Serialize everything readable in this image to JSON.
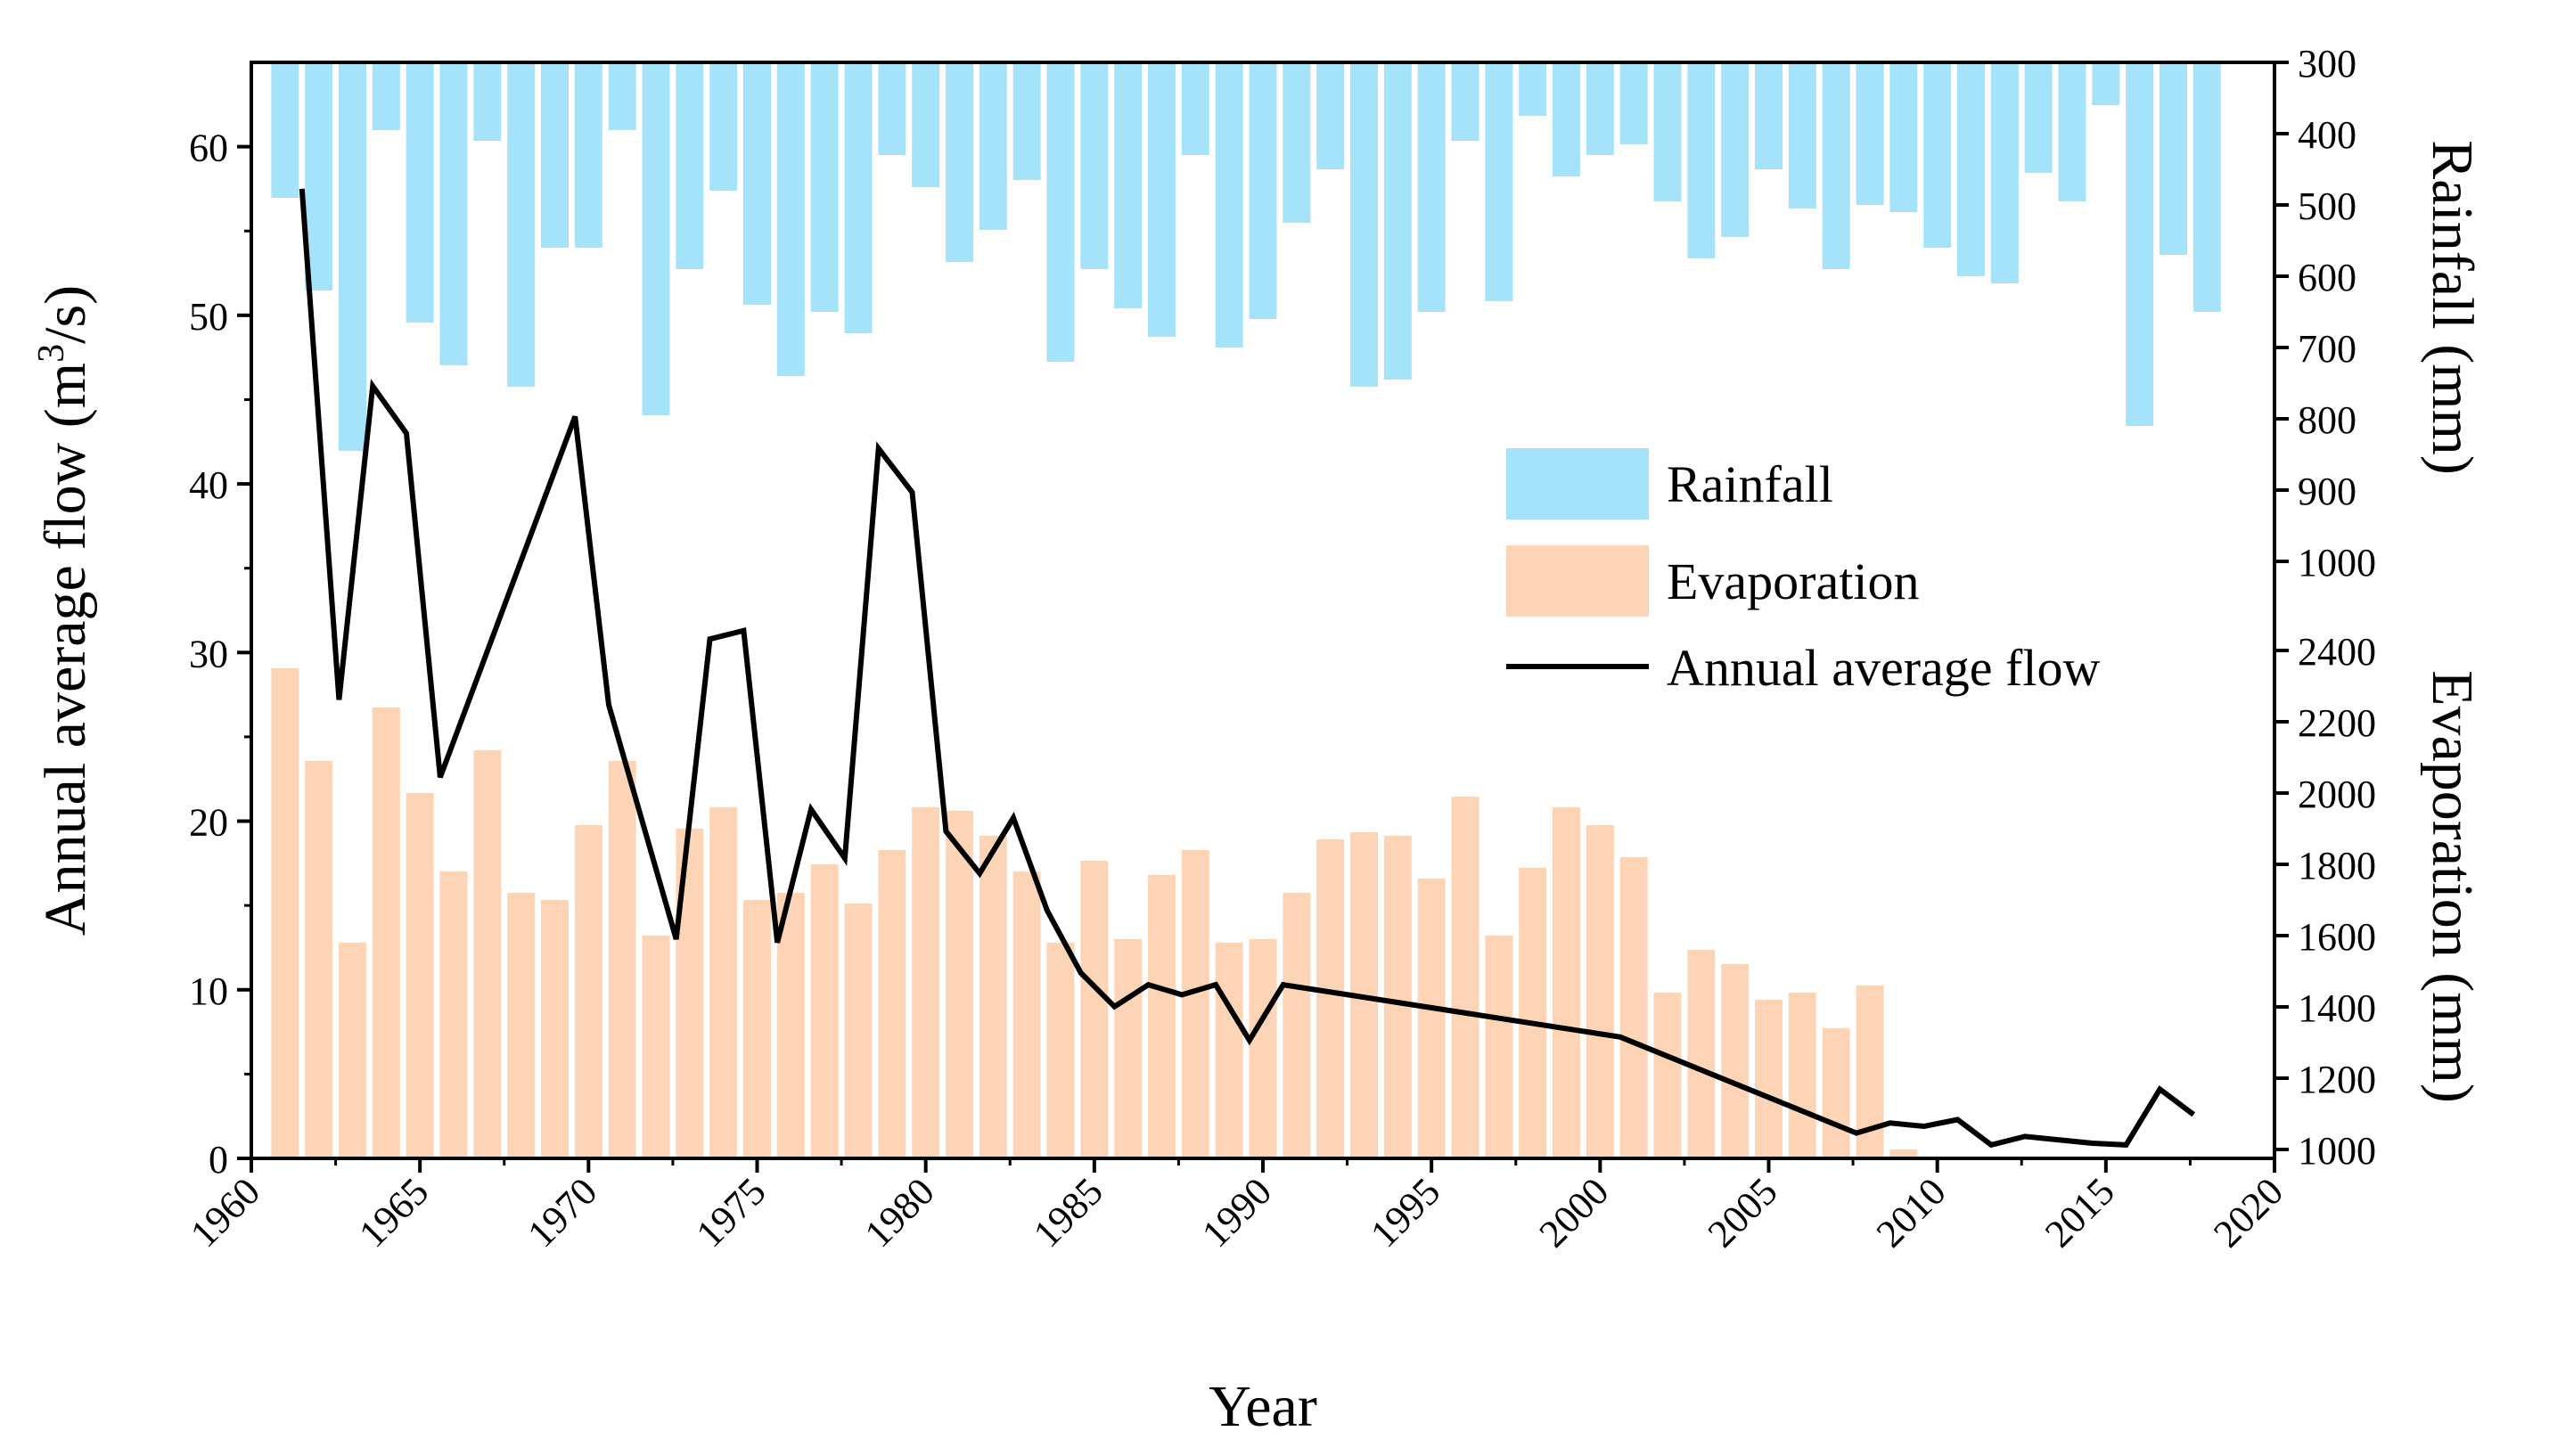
{
  "chart_data": {
    "type": "bar+line",
    "title": "",
    "x": {
      "label": "Year",
      "range": [
        1960,
        2020
      ],
      "ticks": [
        1960,
        1965,
        1970,
        1975,
        1980,
        1985,
        1990,
        1995,
        2000,
        2005,
        2010,
        2015,
        2020
      ]
    },
    "y_left": {
      "label_main": "Annual average flow (m",
      "label_sup": "3",
      "label_tail": "/s)",
      "range": [
        0,
        65
      ],
      "ticks": [
        0,
        10,
        20,
        30,
        40,
        50,
        60
      ]
    },
    "y_right_top": {
      "label": "Rainfall (mm)",
      "inverted": true,
      "range": [
        300,
        1000
      ],
      "ticks": [
        300,
        400,
        500,
        600,
        700,
        800,
        900,
        1000
      ]
    },
    "y_right_bottom": {
      "label": "Evaporation (mm)",
      "range": [
        1000,
        2450
      ],
      "ticks": [
        1000,
        1200,
        1400,
        1600,
        1800,
        2000,
        2200,
        2400
      ]
    },
    "legend": {
      "position": "right",
      "items": [
        {
          "label": "Rainfall",
          "kind": "bar",
          "color": "#a5e3fb"
        },
        {
          "label": "Evaporation",
          "kind": "bar",
          "color": "#fdd5b6"
        },
        {
          "label": "Annual average flow",
          "kind": "line",
          "color": "#000000"
        }
      ]
    },
    "series": [
      {
        "name": "Rainfall",
        "unit": "mm",
        "color": "#a5e3fb",
        "years": [
          1961,
          1962,
          1963,
          1964,
          1965,
          1966,
          1967,
          1968,
          1969,
          1970,
          1971,
          1972,
          1973,
          1974,
          1975,
          1976,
          1977,
          1978,
          1979,
          1980,
          1981,
          1982,
          1983,
          1984,
          1985,
          1986,
          1987,
          1988,
          1989,
          1990,
          1991,
          1992,
          1993,
          1994,
          1995,
          1996,
          1997,
          1998,
          1999,
          2000,
          2001,
          2002,
          2003,
          2004,
          2005,
          2006,
          2007,
          2008,
          2009,
          2010,
          2011,
          2012,
          2013,
          2014,
          2015,
          2016,
          2017,
          2018
        ],
        "values": [
          490,
          620,
          845,
          395,
          665,
          725,
          410,
          755,
          560,
          560,
          395,
          795,
          590,
          480,
          640,
          740,
          650,
          680,
          430,
          475,
          580,
          535,
          465,
          720,
          590,
          645,
          685,
          430,
          700,
          660,
          525,
          450,
          755,
          745,
          650,
          410,
          635,
          375,
          460,
          430,
          415,
          495,
          575,
          545,
          450,
          505,
          590,
          500,
          510,
          560,
          600,
          610,
          455,
          495,
          360,
          810,
          570,
          650
        ]
      },
      {
        "name": "Evaporation",
        "unit": "mm",
        "color": "#fdd5b6",
        "years": [
          1961,
          1962,
          1963,
          1964,
          1965,
          1966,
          1967,
          1968,
          1969,
          1970,
          1971,
          1972,
          1973,
          1974,
          1975,
          1976,
          1977,
          1978,
          1979,
          1980,
          1981,
          1982,
          1983,
          1984,
          1985,
          1986,
          1987,
          1988,
          1989,
          1990,
          1991,
          1992,
          1993,
          1994,
          1995,
          1996,
          1997,
          1998,
          1999,
          2000,
          2001,
          2002,
          2003,
          2004,
          2005,
          2006,
          2007,
          2008,
          2009
        ],
        "values": [
          2350,
          2090,
          1580,
          2240,
          2000,
          1780,
          2120,
          1720,
          1700,
          1910,
          2090,
          1600,
          1900,
          1960,
          1700,
          1720,
          1800,
          1690,
          1840,
          1960,
          1950,
          1880,
          1780,
          1580,
          1810,
          1590,
          1770,
          1840,
          1580,
          1590,
          1720,
          1870,
          1890,
          1880,
          1760,
          1990,
          1600,
          1790,
          1960,
          1910,
          1820,
          1440,
          1560,
          1520,
          1420,
          1440,
          1340,
          1460,
          1000
        ]
      },
      {
        "name": "Annual average flow",
        "unit": "m3/s",
        "color": "#000000",
        "years": [
          1961.5,
          1962.6,
          1963.6,
          1964.6,
          1965.6,
          1969.6,
          1970.6,
          1972.6,
          1973.6,
          1974.6,
          1975.6,
          1976.6,
          1977.6,
          1978.6,
          1979.6,
          1980.6,
          1981.6,
          1982.6,
          1983.6,
          1984.6,
          1985.6,
          1986.6,
          1987.6,
          1988.6,
          1989.6,
          1990.6,
          2000.6,
          2007.6,
          2008.6,
          2009.6,
          2010.6,
          2011.6,
          2012.6,
          2014.6,
          2015.6,
          2016.6,
          2017.6
        ],
        "values": [
          57.5,
          27.2,
          45.8,
          43.0,
          22.6,
          44.0,
          26.9,
          13.0,
          30.8,
          31.3,
          12.8,
          20.7,
          17.8,
          42.1,
          39.5,
          19.4,
          16.9,
          20.2,
          14.7,
          11.0,
          9.0,
          10.3,
          9.7,
          10.3,
          7.0,
          10.3,
          7.2,
          1.5,
          2.1,
          1.9,
          2.3,
          0.8,
          1.3,
          0.9,
          0.8,
          4.1,
          2.6
        ]
      }
    ]
  }
}
